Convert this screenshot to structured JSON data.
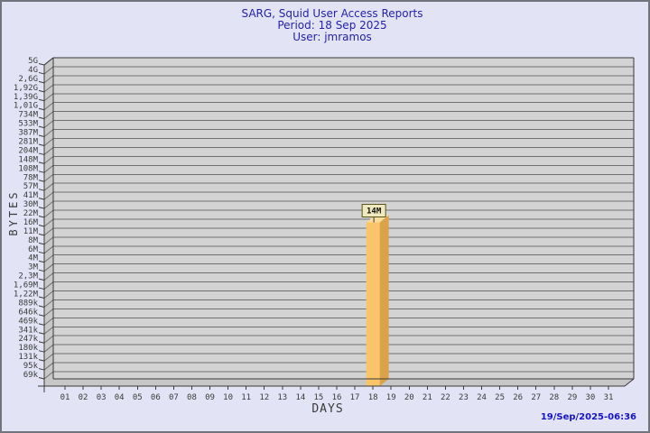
{
  "page": {
    "background": "#E3E3F6",
    "border_color": "#73737D"
  },
  "header": {
    "title": "SARG, Squid User Access Reports",
    "period": "Period: 18 Sep 2025",
    "user": "User: jmramos"
  },
  "footer": {
    "timestamp": "19/Sep/2025-06:36"
  },
  "chart_data": {
    "type": "bar",
    "title": "SARG, Squid User Access Reports",
    "subtitle": "Period: 18 Sep 2025",
    "user_line": "User: jmramos",
    "xlabel": "DAYS",
    "ylabel": "BYTES",
    "y_scale": "log",
    "grid": "horizontal",
    "y_tick_labels": [
      "5G",
      "4G",
      "2,6G",
      "1,92G",
      "1,39G",
      "1,01G",
      "734M",
      "533M",
      "387M",
      "281M",
      "204M",
      "148M",
      "108M",
      "78M",
      "57M",
      "41M",
      "30M",
      "22M",
      "16M",
      "11M",
      "8M",
      "6M",
      "4M",
      "3M",
      "2,3M",
      "1,69M",
      "1,22M",
      "889k",
      "646k",
      "469k",
      "341k",
      "247k",
      "180k",
      "131k",
      "95k",
      "69k"
    ],
    "x_categories": [
      "01",
      "02",
      "03",
      "04",
      "05",
      "06",
      "07",
      "08",
      "09",
      "10",
      "11",
      "12",
      "13",
      "14",
      "15",
      "16",
      "17",
      "18",
      "19",
      "20",
      "21",
      "22",
      "23",
      "24",
      "25",
      "26",
      "27",
      "28",
      "29",
      "30",
      "31"
    ],
    "bars": [
      {
        "day": "18",
        "label": "14M",
        "bytes": 14000000
      }
    ],
    "colors": {
      "bar_front": "#FAC469",
      "bar_side": "#DBA24A",
      "bar_top": "#FBDC9B",
      "plot_wall": "#D3D3D3",
      "plot_side_wall": "#C7C7C7",
      "gridline": "#707070",
      "edge": "#383838",
      "axis_text": "#3A3A3A",
      "annotation_bg": "#F0E9BE",
      "annotation_border": "#55551C",
      "annotation_text": "#111111",
      "title_text": "#2323A8",
      "timestamp_text": "#1414C8"
    }
  }
}
